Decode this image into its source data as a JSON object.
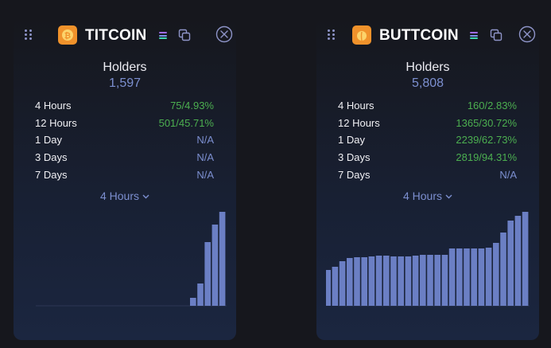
{
  "colors": {
    "positive": "#4caf50",
    "muted": "#7c8fd0",
    "bar": "#6b7fc4"
  },
  "cards": [
    {
      "name": "TITCOIN",
      "logo_icon": "bitcoin-coin-icon",
      "logo_color": "#f0922b",
      "holders_label": "Holders",
      "holders_value": "1,597",
      "rows": [
        {
          "label": "4 Hours",
          "value": "75/4.93%",
          "status": "positive"
        },
        {
          "label": "12 Hours",
          "value": "501/45.71%",
          "status": "positive"
        },
        {
          "label": "1 Day",
          "value": "N/A",
          "status": "muted"
        },
        {
          "label": "3 Days",
          "value": "N/A",
          "status": "muted"
        },
        {
          "label": "7 Days",
          "value": "N/A",
          "status": "muted"
        }
      ],
      "dropdown": "4 Hours",
      "chart_data": {
        "type": "bar",
        "values": [
          0,
          0,
          0,
          0,
          0,
          0,
          0,
          0,
          0,
          0,
          0,
          0,
          0,
          0,
          0,
          0,
          0,
          0,
          0,
          10,
          28,
          80,
          102,
          118
        ],
        "ylim": [
          0,
          118
        ]
      }
    },
    {
      "name": "BUTTCOIN",
      "logo_icon": "peach-coin-icon",
      "logo_color": "#f0922b",
      "holders_label": "Holders",
      "holders_value": "5,808",
      "rows": [
        {
          "label": "4 Hours",
          "value": "160/2.83%",
          "status": "positive"
        },
        {
          "label": "12 Hours",
          "value": "1365/30.72%",
          "status": "positive"
        },
        {
          "label": "1 Day",
          "value": "2239/62.73%",
          "status": "positive"
        },
        {
          "label": "3 Days",
          "value": "2819/94.31%",
          "status": "positive"
        },
        {
          "label": "7 Days",
          "value": "N/A",
          "status": "muted"
        }
      ],
      "dropdown": "4 Hours",
      "chart_data": {
        "type": "bar",
        "values": [
          45,
          49,
          56,
          60,
          61,
          61,
          62,
          63,
          63,
          62,
          62,
          62,
          63,
          64,
          64,
          64,
          64,
          72,
          72,
          72,
          72,
          72,
          73,
          79,
          92,
          107,
          113,
          118
        ],
        "ylim": [
          0,
          118
        ]
      }
    }
  ]
}
